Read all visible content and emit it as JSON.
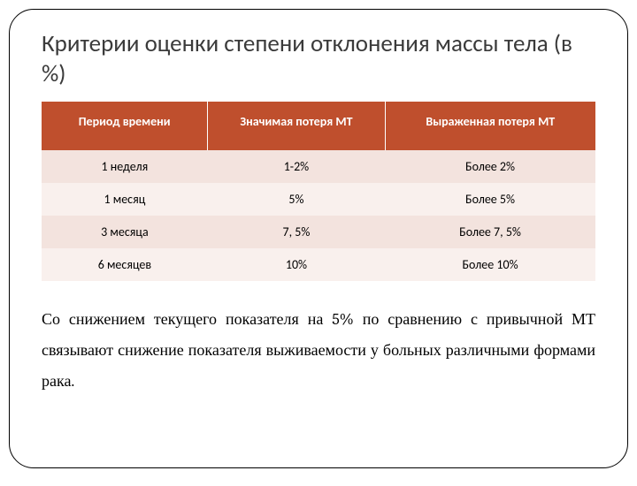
{
  "type": "table",
  "title": "Критерии оценки степени отклонения массы тела (в %)",
  "title_fontsize": 27,
  "title_color": "#3b3b3b",
  "header_bg": "#bf4f2d",
  "header_fg": "#ffffff",
  "row_colors": [
    "#f3e3de",
    "#f9f0ed",
    "#f3e3de",
    "#f9f0ed"
  ],
  "columns": [
    "Период времени",
    "Значимая потеря  МТ",
    "Выраженная потеря МТ"
  ],
  "rows": [
    [
      "1 неделя",
      "1-2%",
      "Более 2%"
    ],
    [
      "1 месяц",
      "5%",
      "Более 5%"
    ],
    [
      "3 месяца",
      "7, 5%",
      "Более 7, 5%"
    ],
    [
      "6 месяцев",
      "10%",
      "Более 10%"
    ]
  ],
  "paragraph": "Со снижением текущего показателя на 5% по сравнению с привычной МТ связывают снижение показателя выживаемости у больных различными формами рака.",
  "paragraph_fontsize": 18
}
